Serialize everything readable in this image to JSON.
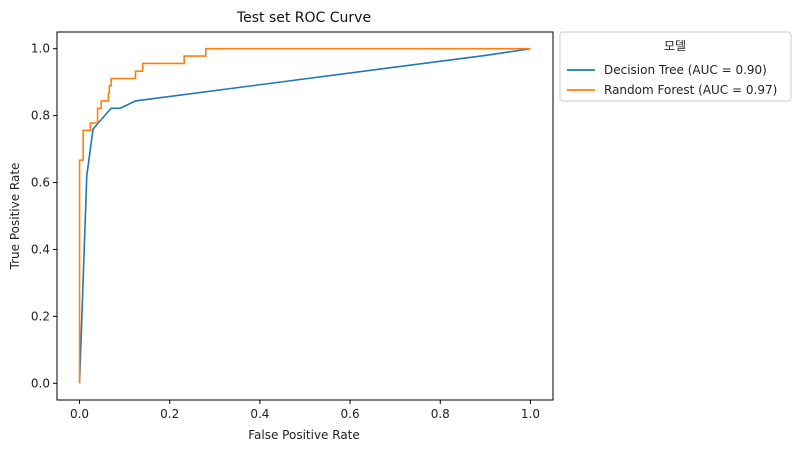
{
  "chart_data": {
    "type": "line",
    "title": "Test set ROC Curve",
    "xlabel": "False Positive Rate",
    "ylabel": "True Positive Rate",
    "xlim": [
      -0.05,
      1.05
    ],
    "ylim": [
      -0.05,
      1.05
    ],
    "xticks": [
      "0.0",
      "0.2",
      "0.4",
      "0.6",
      "0.8",
      "1.0"
    ],
    "yticks": [
      "0.0",
      "0.2",
      "0.4",
      "0.6",
      "0.8",
      "1.0"
    ],
    "grid": false,
    "legend": {
      "title": "모델",
      "placement": "outside top-right"
    },
    "series": [
      {
        "name": "Decision Tree (AUC = 0.90)",
        "color": "#1f77b4",
        "points": [
          [
            0.0,
            0.0
          ],
          [
            0.016,
            0.62
          ],
          [
            0.03,
            0.76
          ],
          [
            0.07,
            0.822
          ],
          [
            0.09,
            0.822
          ],
          [
            0.124,
            0.844
          ],
          [
            0.9,
            0.98
          ],
          [
            1.0,
            1.0
          ]
        ]
      },
      {
        "name": "Random Forest (AUC = 0.97)",
        "color": "#ff7f0e",
        "points": [
          [
            0.0,
            0.0
          ],
          [
            0.0,
            0.444
          ],
          [
            0.0,
            0.444
          ],
          [
            0.0,
            0.667
          ],
          [
            0.008,
            0.667
          ],
          [
            0.008,
            0.756
          ],
          [
            0.024,
            0.756
          ],
          [
            0.024,
            0.778
          ],
          [
            0.04,
            0.778
          ],
          [
            0.04,
            0.822
          ],
          [
            0.048,
            0.822
          ],
          [
            0.048,
            0.844
          ],
          [
            0.064,
            0.844
          ],
          [
            0.064,
            0.867
          ],
          [
            0.066,
            0.867
          ],
          [
            0.066,
            0.889
          ],
          [
            0.07,
            0.889
          ],
          [
            0.07,
            0.911
          ],
          [
            0.124,
            0.911
          ],
          [
            0.124,
            0.933
          ],
          [
            0.14,
            0.933
          ],
          [
            0.14,
            0.956
          ],
          [
            0.232,
            0.956
          ],
          [
            0.232,
            0.978
          ],
          [
            0.28,
            0.978
          ],
          [
            0.28,
            1.0
          ],
          [
            1.0,
            1.0
          ]
        ]
      }
    ]
  }
}
